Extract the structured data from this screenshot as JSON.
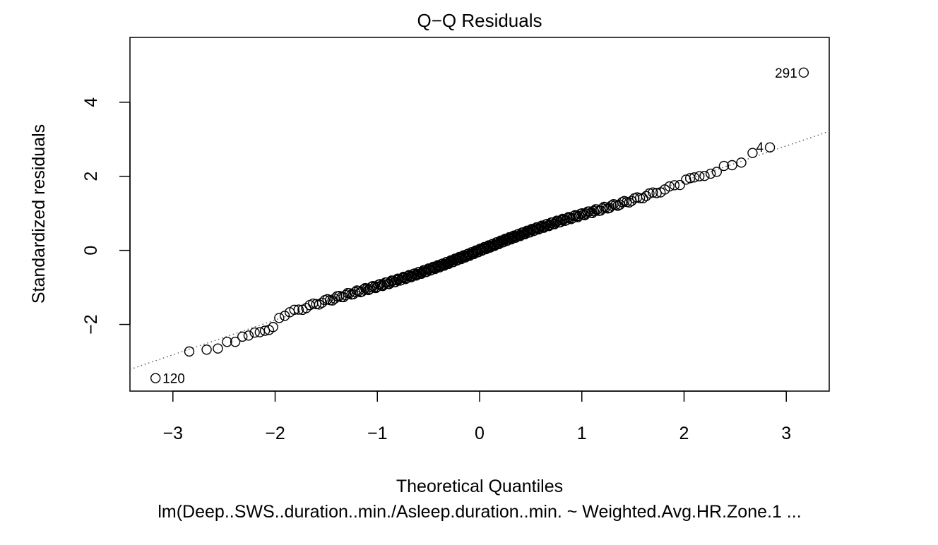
{
  "chart_data": {
    "type": "scatter",
    "title": "Q−Q Residuals",
    "xlabel": "Theoretical Quantiles",
    "ylabel": "Standardized residuals",
    "subtitle": "lm(Deep..SWS..duration..min./Asleep.duration..min. ~ Weighted.Avg.HR.Zone.1 ...",
    "xlim": [
      -3.42,
      3.42
    ],
    "ylim": [
      -3.8,
      5.75
    ],
    "x_ticks": [
      -3,
      -2,
      -1,
      0,
      1,
      2,
      3
    ],
    "x_tick_labels": [
      "−3",
      "−2",
      "−1",
      "0",
      "1",
      "2",
      "3"
    ],
    "y_ticks": [
      -2,
      0,
      2,
      4
    ],
    "y_tick_labels": [
      "−2",
      "0",
      "2",
      "4"
    ],
    "reference_line": {
      "intercept": 0.0,
      "slope": 0.94,
      "style": "dotted"
    },
    "n_points": 300,
    "notes": "Points lie approximately along the reference line: standardized residual ≈ 0.94 × theoretical quantile, with the tail points listed in labeled_points.",
    "labeled_points": [
      {
        "label": "291",
        "x": 3.17,
        "y": 4.8
      },
      {
        "label": "4",
        "x": 2.84,
        "y": 2.78
      },
      {
        "label": "120",
        "x": -3.17,
        "y": -3.45
      }
    ],
    "tail_points": [
      {
        "x": -2.84,
        "y": -2.73
      },
      {
        "x": -2.67,
        "y": -2.68
      },
      {
        "x": -2.56,
        "y": -2.65
      },
      {
        "x": -2.47,
        "y": -2.47
      },
      {
        "x": -2.39,
        "y": -2.47
      },
      {
        "x": -2.32,
        "y": -2.33
      },
      {
        "x": -2.26,
        "y": -2.3
      },
      {
        "x": -2.2,
        "y": -2.22
      },
      {
        "x": -2.15,
        "y": -2.21
      },
      {
        "x": -2.1,
        "y": -2.17
      },
      {
        "x": -2.06,
        "y": -2.15
      },
      {
        "x": -2.02,
        "y": -2.07
      },
      {
        "x": 2.02,
        "y": 1.91
      },
      {
        "x": 2.06,
        "y": 1.95
      },
      {
        "x": 2.1,
        "y": 1.97
      },
      {
        "x": 2.15,
        "y": 2.0
      },
      {
        "x": 2.2,
        "y": 2.01
      },
      {
        "x": 2.26,
        "y": 2.07
      },
      {
        "x": 2.32,
        "y": 2.12
      },
      {
        "x": 2.39,
        "y": 2.28
      },
      {
        "x": 2.47,
        "y": 2.3
      },
      {
        "x": 2.56,
        "y": 2.37
      },
      {
        "x": 2.67,
        "y": 2.63
      }
    ],
    "grid": false,
    "legend": "none"
  }
}
